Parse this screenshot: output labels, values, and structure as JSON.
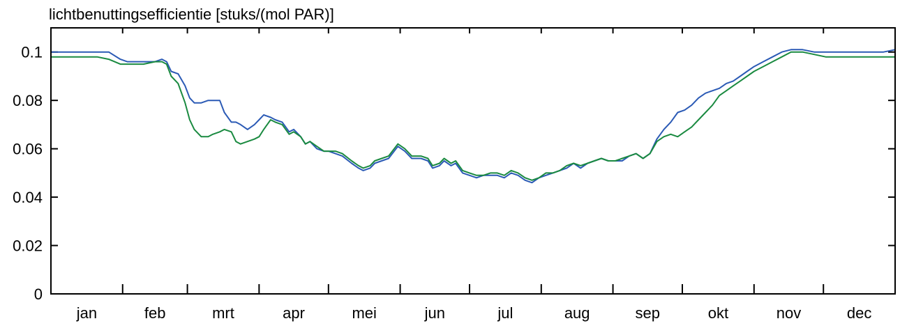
{
  "chart_data": {
    "type": "line",
    "title": "lichtbenuttingsefficientie [stuks/(mol PAR)]",
    "xlabel": "",
    "ylabel": "",
    "ylim": [
      0,
      0.11
    ],
    "yticks": [
      0,
      0.02,
      0.04,
      0.06,
      0.08,
      0.1
    ],
    "ytick_labels": [
      "0",
      "0.02",
      "0.04",
      "0.06",
      "0.08",
      "0.1"
    ],
    "xlim": [
      0,
      365
    ],
    "month_ticks": [
      0,
      31,
      59,
      90,
      120,
      151,
      181,
      212,
      243,
      273,
      304,
      334,
      365
    ],
    "month_labels": [
      "jan",
      "feb",
      "mrt",
      "apr",
      "mei",
      "jun",
      "jul",
      "aug",
      "sep",
      "okt",
      "nov",
      "dec"
    ],
    "grid": false,
    "colors": {
      "blue": "#2b5ab5",
      "green": "#1a8a40",
      "axis": "#000000"
    },
    "series": [
      {
        "color": "blue",
        "x": [
          0,
          5,
          10,
          15,
          20,
          25,
          30,
          33,
          36,
          40,
          45,
          48,
          50,
          52,
          55,
          58,
          60,
          62,
          65,
          68,
          70,
          73,
          75,
          78,
          80,
          82,
          85,
          88,
          90,
          92,
          95,
          97,
          100,
          103,
          105,
          108,
          110,
          112,
          115,
          118,
          120,
          123,
          126,
          130,
          133,
          135,
          138,
          140,
          143,
          146,
          150,
          153,
          156,
          160,
          163,
          165,
          168,
          170,
          173,
          175,
          178,
          181,
          184,
          187,
          190,
          193,
          196,
          199,
          202,
          205,
          208,
          211,
          214,
          217,
          220,
          223,
          226,
          229,
          232,
          235,
          238,
          241,
          244,
          247,
          250,
          253,
          256,
          259,
          262,
          265,
          268,
          271,
          274,
          277,
          280,
          283,
          286,
          289,
          292,
          295,
          298,
          301,
          304,
          308,
          312,
          316,
          320,
          325,
          330,
          335,
          340,
          345,
          350,
          355,
          360,
          365
        ],
        "y": [
          0.1,
          0.1,
          0.1,
          0.1,
          0.1,
          0.1,
          0.097,
          0.096,
          0.096,
          0.096,
          0.096,
          0.097,
          0.096,
          0.092,
          0.091,
          0.086,
          0.081,
          0.079,
          0.079,
          0.08,
          0.08,
          0.08,
          0.075,
          0.071,
          0.071,
          0.07,
          0.068,
          0.07,
          0.072,
          0.074,
          0.073,
          0.072,
          0.071,
          0.067,
          0.068,
          0.065,
          0.062,
          0.063,
          0.06,
          0.059,
          0.059,
          0.058,
          0.057,
          0.054,
          0.052,
          0.051,
          0.052,
          0.054,
          0.055,
          0.056,
          0.061,
          0.059,
          0.056,
          0.056,
          0.055,
          0.052,
          0.053,
          0.055,
          0.053,
          0.054,
          0.05,
          0.049,
          0.048,
          0.049,
          0.049,
          0.049,
          0.048,
          0.05,
          0.049,
          0.047,
          0.046,
          0.048,
          0.049,
          0.05,
          0.051,
          0.052,
          0.054,
          0.052,
          0.054,
          0.055,
          0.056,
          0.055,
          0.055,
          0.055,
          0.057,
          0.058,
          0.056,
          0.058,
          0.064,
          0.068,
          0.071,
          0.075,
          0.076,
          0.078,
          0.081,
          0.083,
          0.084,
          0.085,
          0.087,
          0.088,
          0.09,
          0.092,
          0.094,
          0.096,
          0.098,
          0.1,
          0.101,
          0.101,
          0.1,
          0.1,
          0.1,
          0.1,
          0.1,
          0.1,
          0.1,
          0.101
        ]
      },
      {
        "color": "green",
        "x": [
          0,
          5,
          10,
          15,
          20,
          25,
          30,
          33,
          36,
          40,
          45,
          48,
          50,
          52,
          55,
          58,
          60,
          62,
          65,
          68,
          70,
          73,
          75,
          78,
          80,
          82,
          85,
          88,
          90,
          92,
          95,
          97,
          100,
          103,
          105,
          108,
          110,
          112,
          115,
          118,
          120,
          123,
          126,
          130,
          133,
          135,
          138,
          140,
          143,
          146,
          150,
          153,
          156,
          160,
          163,
          165,
          168,
          170,
          173,
          175,
          178,
          181,
          184,
          187,
          190,
          193,
          196,
          199,
          202,
          205,
          208,
          211,
          214,
          217,
          220,
          223,
          226,
          229,
          232,
          235,
          238,
          241,
          244,
          247,
          250,
          253,
          256,
          259,
          262,
          265,
          268,
          271,
          274,
          277,
          280,
          283,
          286,
          289,
          292,
          295,
          298,
          301,
          304,
          308,
          312,
          316,
          320,
          325,
          330,
          335,
          340,
          345,
          350,
          355,
          360,
          365
        ],
        "y": [
          0.098,
          0.098,
          0.098,
          0.098,
          0.098,
          0.097,
          0.095,
          0.095,
          0.095,
          0.095,
          0.096,
          0.096,
          0.095,
          0.09,
          0.087,
          0.079,
          0.072,
          0.068,
          0.065,
          0.065,
          0.066,
          0.067,
          0.068,
          0.067,
          0.063,
          0.062,
          0.063,
          0.064,
          0.065,
          0.068,
          0.072,
          0.071,
          0.07,
          0.066,
          0.067,
          0.065,
          0.062,
          0.063,
          0.061,
          0.059,
          0.059,
          0.059,
          0.058,
          0.055,
          0.053,
          0.052,
          0.053,
          0.055,
          0.056,
          0.057,
          0.062,
          0.06,
          0.057,
          0.057,
          0.056,
          0.053,
          0.054,
          0.056,
          0.054,
          0.055,
          0.051,
          0.05,
          0.049,
          0.049,
          0.05,
          0.05,
          0.049,
          0.051,
          0.05,
          0.048,
          0.047,
          0.048,
          0.05,
          0.05,
          0.051,
          0.053,
          0.054,
          0.053,
          0.054,
          0.055,
          0.056,
          0.055,
          0.055,
          0.056,
          0.057,
          0.058,
          0.056,
          0.058,
          0.063,
          0.065,
          0.066,
          0.065,
          0.067,
          0.069,
          0.072,
          0.075,
          0.078,
          0.082,
          0.084,
          0.086,
          0.088,
          0.09,
          0.092,
          0.094,
          0.096,
          0.098,
          0.1,
          0.1,
          0.099,
          0.098,
          0.098,
          0.098,
          0.098,
          0.098,
          0.098,
          0.098
        ]
      }
    ]
  }
}
